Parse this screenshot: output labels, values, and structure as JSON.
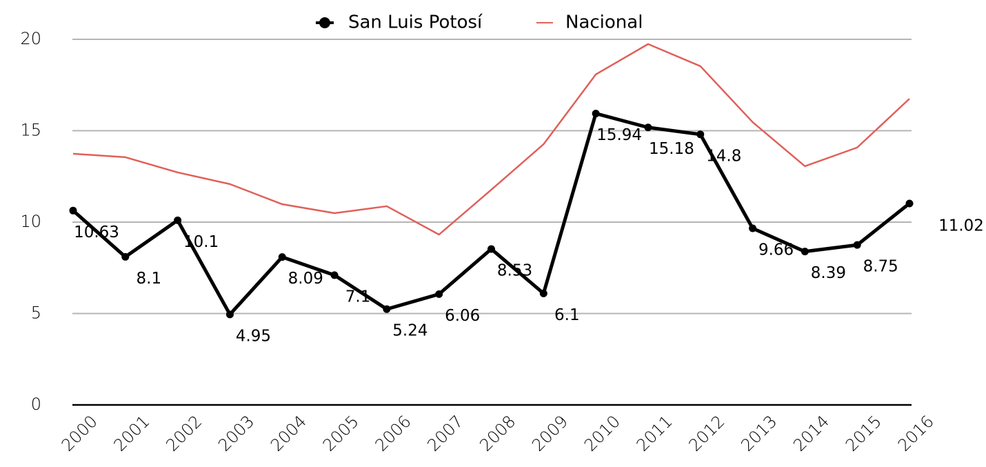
{
  "chart_data": {
    "type": "line",
    "categories": [
      "2000",
      "2001",
      "2002",
      "2003",
      "2004",
      "2005",
      "2006",
      "2007",
      "2008",
      "2009",
      "2010",
      "2011",
      "2012",
      "2013",
      "2014",
      "2015",
      "2016"
    ],
    "series": [
      {
        "name": "San Luis Potosí",
        "color": "#000000",
        "values": [
          10.63,
          8.1,
          10.1,
          4.95,
          8.09,
          7.1,
          5.24,
          6.06,
          8.53,
          6.1,
          15.94,
          15.18,
          14.8,
          9.66,
          8.39,
          8.75,
          11.02
        ]
      },
      {
        "name": "Nacional",
        "color": "#e0605a",
        "values": [
          13.74,
          13.55,
          12.72,
          12.08,
          10.98,
          10.49,
          10.87,
          9.32,
          11.77,
          14.26,
          18.08,
          19.74,
          18.53,
          15.47,
          13.06,
          14.08,
          16.75
        ]
      }
    ],
    "ylim": [
      0,
      20
    ],
    "yticks": [
      0,
      5,
      10,
      15,
      20
    ],
    "grid": true
  }
}
